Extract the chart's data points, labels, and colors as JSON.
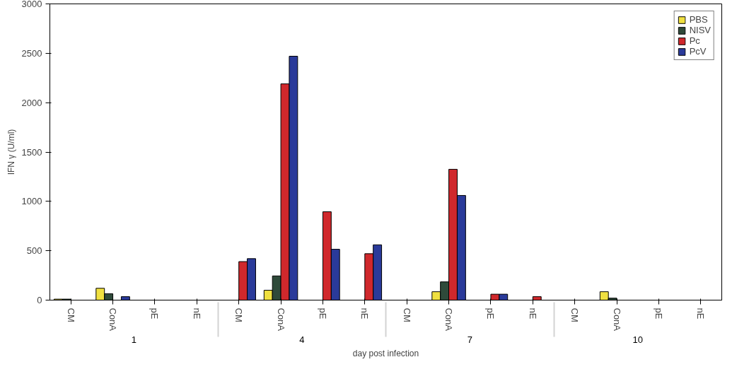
{
  "chart_data": {
    "type": "bar",
    "categories": [
      "CM",
      "ConA",
      "pE",
      "nE",
      "CM",
      "ConA",
      "pE",
      "nE",
      "CM",
      "ConA",
      "pE",
      "nE",
      "CM",
      "ConA",
      "pE",
      "nE"
    ],
    "annotations": [
      "1",
      "4",
      "7",
      "10"
    ],
    "xlabel": "day post infection",
    "ylabel": "IFN γ (U/ml)",
    "ylim": [
      0,
      3000
    ],
    "yticks": [
      0,
      500,
      1000,
      1500,
      2000,
      2500,
      3000
    ],
    "grid": false,
    "legend": "top right",
    "series": [
      {
        "name": "PBS",
        "color": "#f0e040",
        "values": [
          10,
          120,
          null,
          null,
          null,
          100,
          null,
          null,
          null,
          85,
          null,
          null,
          null,
          85,
          null,
          null
        ]
      },
      {
        "name": "NISV",
        "color": "#2f4a3a",
        "values": [
          10,
          65,
          null,
          null,
          null,
          245,
          null,
          null,
          null,
          185,
          null,
          null,
          null,
          20,
          null,
          null
        ]
      },
      {
        "name": "Pc",
        "color": "#d0282c",
        "values": [
          null,
          null,
          null,
          null,
          390,
          2190,
          895,
          470,
          null,
          1325,
          60,
          35,
          null,
          null,
          null,
          null
        ]
      },
      {
        "name": "PcV",
        "color": "#2a3a9a",
        "values": [
          null,
          35,
          null,
          null,
          420,
          2470,
          515,
          560,
          null,
          1060,
          60,
          null,
          null,
          null,
          null,
          null
        ]
      }
    ]
  }
}
